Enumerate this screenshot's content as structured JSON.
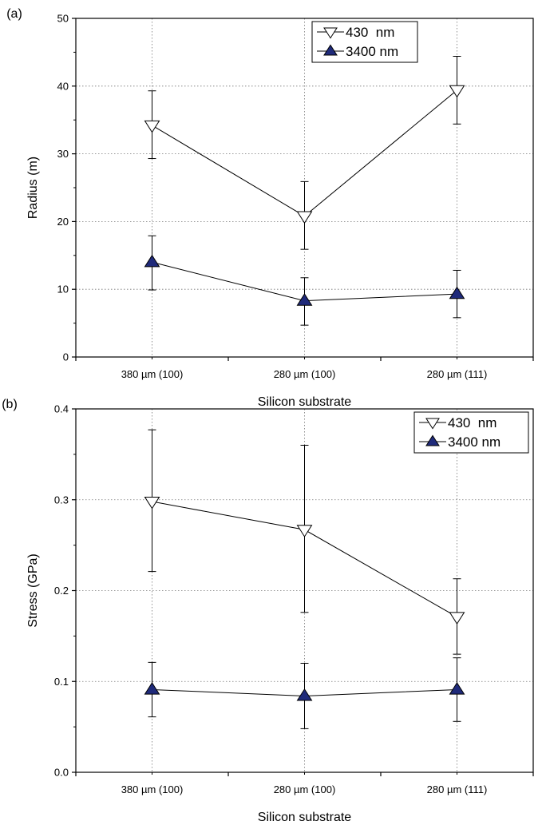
{
  "chart_data": [
    {
      "panel_label": "(a)",
      "type": "line",
      "xlabel": "Silicon substrate",
      "ylabel": "Radius (m)",
      "ylim": [
        0,
        50
      ],
      "yticks": [
        "0",
        "10",
        "20",
        "30",
        "40",
        "50"
      ],
      "yticks_values": [
        0,
        10,
        20,
        30,
        40,
        50
      ],
      "categories": [
        "380 µm (100)",
        "280 µm (100)",
        "280 µm (111)"
      ],
      "grid": true,
      "legend_position": "top-right",
      "series": [
        {
          "name": "430  nm",
          "marker": "open-down-triangle",
          "color": "#ffffff",
          "values": [
            34.2,
            20.8,
            39.4
          ],
          "err_low": [
            29.3,
            15.9,
            34.4
          ],
          "err_high": [
            39.3,
            25.9,
            44.4
          ]
        },
        {
          "name": "3400 nm",
          "marker": "filled-up-triangle",
          "color": "#1f2a7a",
          "values": [
            14.0,
            8.3,
            9.3
          ],
          "err_low": [
            9.9,
            4.7,
            5.8
          ],
          "err_high": [
            17.9,
            11.7,
            12.8
          ]
        }
      ]
    },
    {
      "panel_label": "(b)",
      "type": "line",
      "xlabel": "Silicon substrate",
      "ylabel": "Stress (GPa)",
      "ylim": [
        0,
        0.4
      ],
      "yticks": [
        "0.0",
        "0.1",
        "0.2",
        "0.3",
        "0.4"
      ],
      "yticks_values": [
        0,
        0.1,
        0.2,
        0.3,
        0.4
      ],
      "categories": [
        "380 µm (100)",
        "280 µm (100)",
        "280 µm (111)"
      ],
      "grid": true,
      "legend_position": "top-right",
      "series": [
        {
          "name": "430  nm",
          "marker": "open-down-triangle",
          "color": "#ffffff",
          "values": [
            0.298,
            0.267,
            0.171
          ],
          "err_low": [
            0.221,
            0.176,
            0.13
          ],
          "err_high": [
            0.377,
            0.36,
            0.213
          ]
        },
        {
          "name": "3400 nm",
          "marker": "filled-up-triangle",
          "color": "#1f2a7a",
          "values": [
            0.091,
            0.084,
            0.091
          ],
          "err_low": [
            0.061,
            0.048,
            0.056
          ],
          "err_high": [
            0.121,
            0.12,
            0.126
          ]
        }
      ]
    }
  ]
}
